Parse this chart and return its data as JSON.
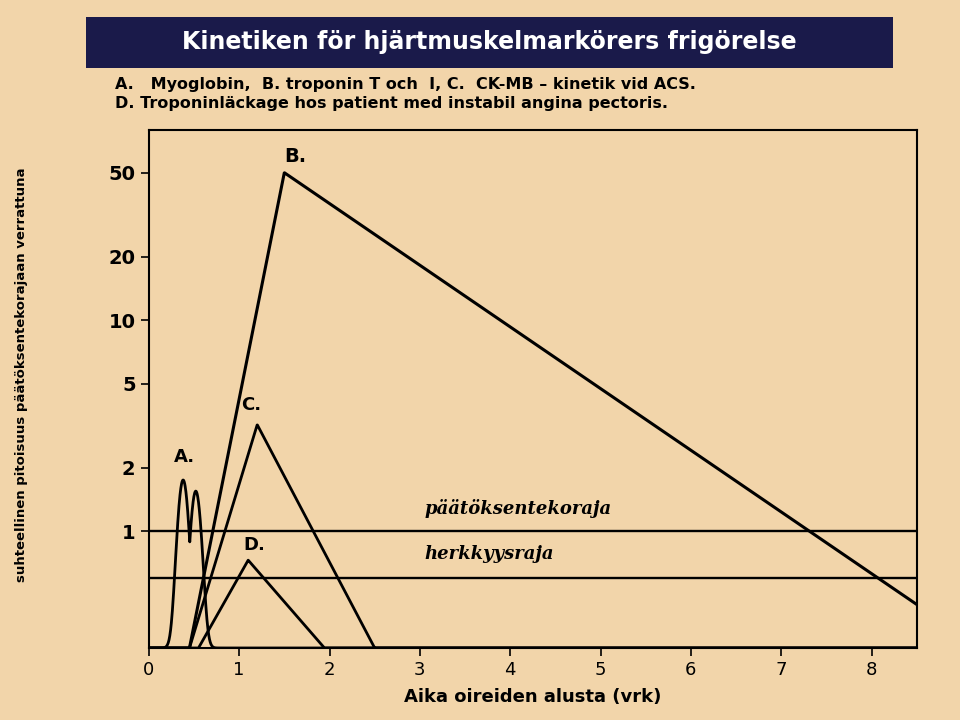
{
  "title": "Kinetiken för hjärtmuskelmarkörers frigörelse",
  "subtitle_line1": "A.   Myoglobin,  B. troponin T och  I, C.  CK-MB – kinetik vid ACS.",
  "subtitle_line2": "D. Troponinläckage hos patient med instabil angina pectoris.",
  "xlabel": "Aika oireiden alusta (vrk)",
  "ylabel_chars": [
    "s",
    "u",
    "h",
    "t",
    "e",
    "e",
    "l",
    "l",
    "i",
    "n",
    "e",
    "n",
    " ",
    "p",
    "i",
    "t",
    "o",
    "i",
    "s",
    "u",
    "u",
    "s",
    " ",
    "p",
    "ä",
    "ä",
    "t",
    "ö",
    "k",
    "s",
    "e",
    "n",
    "t",
    "e",
    "k",
    "o",
    "r",
    "a",
    "j",
    "a",
    "a",
    "n",
    " ",
    "v",
    "e",
    "r",
    "r",
    "a",
    "t",
    "t",
    "u",
    "n",
    "a"
  ],
  "bg_color": "#f2d5aa",
  "title_bg_color": "#1a1a4a",
  "title_text_color": "#ffffff",
  "line_color": "#000000",
  "reference_line1_label": "päätöksentekoraja",
  "reference_line2_label": "herkkyysraja",
  "yticks": [
    1,
    2,
    5,
    10,
    20,
    50
  ],
  "xticks": [
    0,
    1,
    2,
    3,
    4,
    5,
    6,
    7,
    8
  ],
  "xlim": [
    0,
    8.5
  ],
  "ylim_log_min": 0.28,
  "ylim_log_max": 80,
  "paatoksentekoraja": 1.0,
  "herkkyysraja": 0.6,
  "curve_A_label": "A.",
  "curve_B_label": "B.",
  "curve_C_label": "C.",
  "curve_D_label": "D.",
  "lw": 2.0
}
